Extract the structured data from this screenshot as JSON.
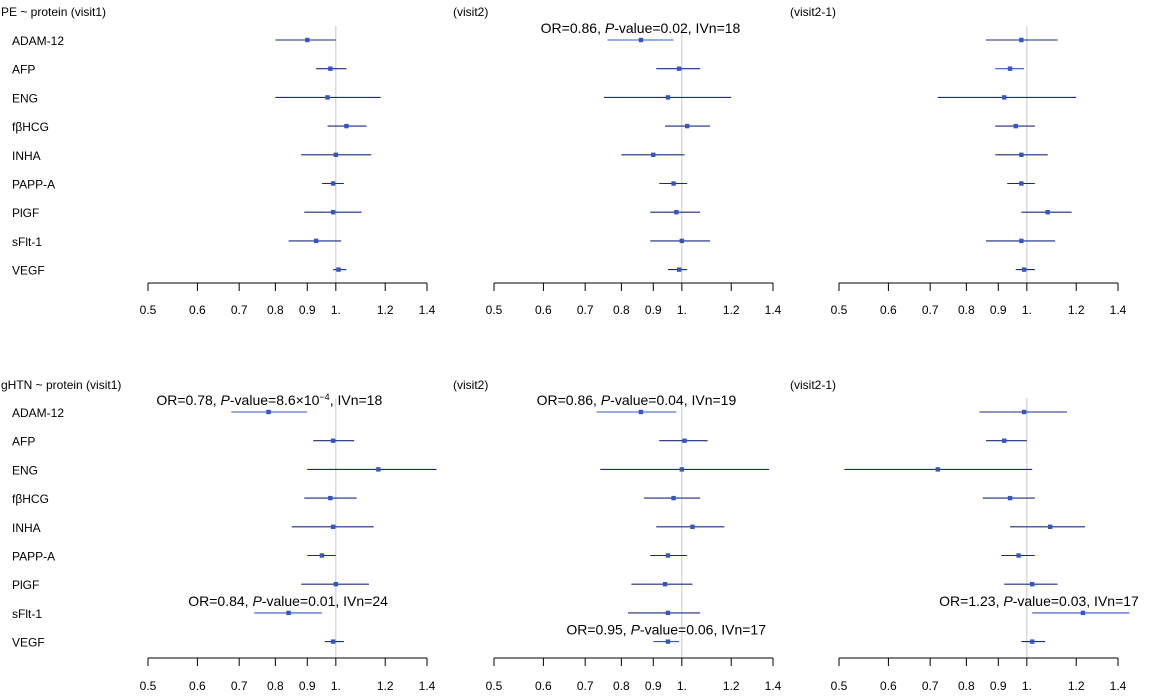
{
  "figure": {
    "proteins": [
      "ADAM-12",
      "AFP",
      "ENG",
      "fβHCG",
      "INHA",
      "PAPP-A",
      "PlGF",
      "sFlt-1",
      "VEGF"
    ],
    "x_axis": {
      "ticks": [
        0.5,
        0.6,
        0.7,
        0.8,
        0.9,
        1,
        1.2,
        1.4
      ],
      "tick_labels": [
        "0.5",
        "0.6",
        "0.7",
        "0.8",
        "0.9",
        "1.",
        "1.2",
        "1.4"
      ],
      "range": [
        0.5,
        1.4
      ],
      "scale": "log"
    },
    "colors": {
      "bright": "#3355cc",
      "dark": "#1a2a80",
      "reference": "#c8c8c8"
    }
  },
  "chart_data": [
    {
      "type": "forest",
      "title": "PE ~ protein (visit1)",
      "series": [
        {
          "name": "ADAM-12",
          "or": 0.9,
          "lo": 0.8,
          "hi": 1.0
        },
        {
          "name": "AFP",
          "or": 0.98,
          "lo": 0.93,
          "hi": 1.04
        },
        {
          "name": "ENG",
          "or": 0.97,
          "lo": 0.8,
          "hi": 1.18
        },
        {
          "name": "fβHCG",
          "or": 1.04,
          "lo": 0.97,
          "hi": 1.12
        },
        {
          "name": "INHA",
          "or": 1.0,
          "lo": 0.88,
          "hi": 1.14
        },
        {
          "name": "PAPP-A",
          "or": 0.99,
          "lo": 0.95,
          "hi": 1.03
        },
        {
          "name": "PlGF",
          "or": 0.99,
          "lo": 0.89,
          "hi": 1.1
        },
        {
          "name": "sFlt-1",
          "or": 0.93,
          "lo": 0.84,
          "hi": 1.02
        },
        {
          "name": "VEGF",
          "or": 1.01,
          "lo": 0.99,
          "hi": 1.04
        }
      ],
      "annotation": null
    },
    {
      "type": "forest",
      "title": "(visit2)",
      "series": [
        {
          "name": "ADAM-12",
          "or": 0.86,
          "lo": 0.76,
          "hi": 0.97
        },
        {
          "name": "AFP",
          "or": 0.99,
          "lo": 0.91,
          "hi": 1.07
        },
        {
          "name": "ENG",
          "or": 0.95,
          "lo": 0.75,
          "hi": 1.2
        },
        {
          "name": "fβHCG",
          "or": 1.02,
          "lo": 0.94,
          "hi": 1.11
        },
        {
          "name": "INHA",
          "or": 0.9,
          "lo": 0.8,
          "hi": 1.01
        },
        {
          "name": "PAPP-A",
          "or": 0.97,
          "lo": 0.92,
          "hi": 1.02
        },
        {
          "name": "PlGF",
          "or": 0.98,
          "lo": 0.89,
          "hi": 1.07
        },
        {
          "name": "sFlt-1",
          "or": 1.0,
          "lo": 0.89,
          "hi": 1.11
        },
        {
          "name": "VEGF",
          "or": 0.99,
          "lo": 0.95,
          "hi": 1.02
        }
      ],
      "annotation": {
        "row": 0,
        "text": [
          "OR=0.86, ",
          "P",
          "-value=0.02, IVn=18"
        ]
      }
    },
    {
      "type": "forest",
      "title": "(visit2-1)",
      "series": [
        {
          "name": "ADAM-12",
          "or": 0.98,
          "lo": 0.86,
          "hi": 1.12
        },
        {
          "name": "AFP",
          "or": 0.94,
          "lo": 0.89,
          "hi": 0.99
        },
        {
          "name": "ENG",
          "or": 0.92,
          "lo": 0.72,
          "hi": 1.2
        },
        {
          "name": "fβHCG",
          "or": 0.96,
          "lo": 0.89,
          "hi": 1.03
        },
        {
          "name": "INHA",
          "or": 0.98,
          "lo": 0.89,
          "hi": 1.08
        },
        {
          "name": "PAPP-A",
          "or": 0.98,
          "lo": 0.93,
          "hi": 1.03
        },
        {
          "name": "PlGF",
          "or": 1.08,
          "lo": 0.98,
          "hi": 1.18
        },
        {
          "name": "sFlt-1",
          "or": 0.98,
          "lo": 0.86,
          "hi": 1.11
        },
        {
          "name": "VEGF",
          "or": 0.99,
          "lo": 0.96,
          "hi": 1.03
        }
      ],
      "annotation": null
    },
    {
      "type": "forest",
      "title": "gHTN ~ protein (visit1)",
      "series": [
        {
          "name": "ADAM-12",
          "or": 0.78,
          "lo": 0.68,
          "hi": 0.9
        },
        {
          "name": "AFP",
          "or": 0.99,
          "lo": 0.92,
          "hi": 1.07
        },
        {
          "name": "ENG",
          "or": 1.17,
          "lo": 0.9,
          "hi": 1.45
        },
        {
          "name": "fβHCG",
          "or": 0.98,
          "lo": 0.89,
          "hi": 1.08
        },
        {
          "name": "INHA",
          "or": 0.99,
          "lo": 0.85,
          "hi": 1.15
        },
        {
          "name": "PAPP-A",
          "or": 0.95,
          "lo": 0.9,
          "hi": 1.0
        },
        {
          "name": "PlGF",
          "or": 1.0,
          "lo": 0.88,
          "hi": 1.13
        },
        {
          "name": "sFlt-1",
          "or": 0.84,
          "lo": 0.74,
          "hi": 0.95
        },
        {
          "name": "VEGF",
          "or": 0.99,
          "lo": 0.96,
          "hi": 1.03
        }
      ],
      "annotation": {
        "row": 0,
        "text": [
          "OR=0.78, ",
          "P",
          "-value=8.6×10",
          "−4",
          ", IVn=18"
        ]
      },
      "annotation2": {
        "row": 7,
        "text": [
          "OR=0.84, ",
          "P",
          "-value=0.01, IVn=24"
        ]
      }
    },
    {
      "type": "forest",
      "title": "(visit2)",
      "series": [
        {
          "name": "ADAM-12",
          "or": 0.86,
          "lo": 0.73,
          "hi": 0.98
        },
        {
          "name": "AFP",
          "or": 1.01,
          "lo": 0.92,
          "hi": 1.1
        },
        {
          "name": "ENG",
          "or": 1.0,
          "lo": 0.74,
          "hi": 1.38
        },
        {
          "name": "fβHCG",
          "or": 0.97,
          "lo": 0.87,
          "hi": 1.07
        },
        {
          "name": "INHA",
          "or": 1.04,
          "lo": 0.91,
          "hi": 1.17
        },
        {
          "name": "PAPP-A",
          "or": 0.95,
          "lo": 0.89,
          "hi": 1.02
        },
        {
          "name": "PlGF",
          "or": 0.94,
          "lo": 0.83,
          "hi": 1.04
        },
        {
          "name": "sFlt-1",
          "or": 0.95,
          "lo": 0.82,
          "hi": 1.07
        },
        {
          "name": "VEGF",
          "or": 0.95,
          "lo": 0.9,
          "hi": 0.99
        }
      ],
      "annotation": {
        "row": 0,
        "text": [
          "OR=0.86, ",
          "P",
          "-value=0.04, IVn=19"
        ]
      },
      "annotation2": {
        "row": 8,
        "text": [
          "OR=0.95, ",
          "P",
          "-value=0.06, IVn=17"
        ]
      }
    },
    {
      "type": "forest",
      "title": "(visit2-1)",
      "series": [
        {
          "name": "ADAM-12",
          "or": 0.99,
          "lo": 0.84,
          "hi": 1.16
        },
        {
          "name": "AFP",
          "or": 0.92,
          "lo": 0.86,
          "hi": 1.0
        },
        {
          "name": "ENG",
          "or": 0.72,
          "lo": 0.51,
          "hi": 1.02
        },
        {
          "name": "fβHCG",
          "or": 0.94,
          "lo": 0.85,
          "hi": 1.03
        },
        {
          "name": "INHA",
          "or": 1.09,
          "lo": 0.94,
          "hi": 1.24
        },
        {
          "name": "PAPP-A",
          "or": 0.97,
          "lo": 0.91,
          "hi": 1.03
        },
        {
          "name": "PlGF",
          "or": 1.02,
          "lo": 0.92,
          "hi": 1.12
        },
        {
          "name": "sFlt-1",
          "or": 1.23,
          "lo": 1.02,
          "hi": 1.46
        },
        {
          "name": "VEGF",
          "or": 1.02,
          "lo": 0.98,
          "hi": 1.07
        }
      ],
      "annotation": {
        "row": 7,
        "text": [
          "OR=1.23, ",
          "P",
          "-value=0.03, IVn=17"
        ]
      }
    }
  ]
}
